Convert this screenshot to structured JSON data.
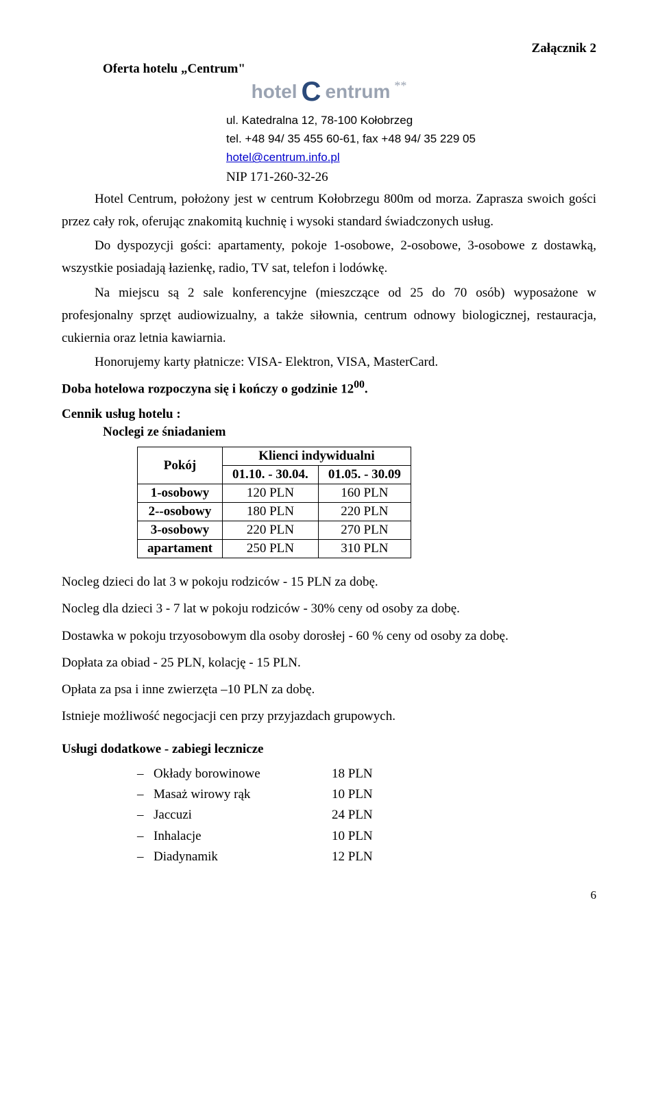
{
  "attachment": "Załącznik 2",
  "offer_title": "Oferta hotelu „Centrum\"",
  "logo": {
    "word1": "hotel",
    "word2": "entrum",
    "stars": "**"
  },
  "contact": {
    "address": "ul. Katedralna 12, 78-100 Kołobrzeg",
    "tel": "tel. +48 94/ 35 455 60-61, fax +48 94/ 35 229 05",
    "email": "hotel@centrum.info.pl",
    "nip": "NIP 171-260-32-26"
  },
  "paragraphs": {
    "p1a": "Hotel Centrum, położony jest w centrum Kołobrzegu 800m od morza. Zaprasza swoich gości przez cały rok, oferując znakomitą kuchnię i wysoki standard świadczonych usług.",
    "p2": "Do dyspozycji gości: apartamenty, pokoje 1-osobowe, 2-osobowe, 3-osobowe z dostawką, wszystkie posiadają łazienkę, radio, TV sat, telefon i lodówkę.",
    "p3": "Na miejscu są 2 sale konferencyjne (mieszczące od 25 do 70 osób) wyposażone w profesjonalny sprzęt audiowizualny, a także siłownia, centrum odnowy biologicznej, restauracja, cukiernia oraz letnia kawiarnia.",
    "p4": "Honorujemy karty płatnicze: VISA- Elektron, VISA, MasterCard.",
    "p5_prefix": "Doba hotelowa rozpoczyna się i kończy o godzinie 12",
    "p5_sup": "00",
    "p5_suffix": "."
  },
  "section_heading": "Cennik usług hotelu :",
  "sub_heading": "Noclegi ze śniadaniem",
  "table": {
    "col1": "Pokój",
    "col2": "Klienci indywidualni",
    "period1": "01.10. - 30.04.",
    "period2": "01.05. - 30.09",
    "rows": [
      {
        "label": "1-osobowy",
        "p1": "120 PLN",
        "p2": "160 PLN"
      },
      {
        "label": "2--osobowy",
        "p1": "180 PLN",
        "p2": "220 PLN"
      },
      {
        "label": "3-osobowy",
        "p1": "220 PLN",
        "p2": "270 PLN"
      },
      {
        "label": "apartament",
        "p1": "250 PLN",
        "p2": "310 PLN"
      }
    ]
  },
  "notes": [
    "Nocleg dzieci do lat 3 w pokoju rodziców - 15 PLN za dobę.",
    "Nocleg dla dzieci 3 - 7 lat w pokoju rodziców - 30% ceny od osoby za dobę.",
    "Dostawka w pokoju trzyosobowym dla osoby dorosłej - 60 % ceny od osoby za dobę.",
    "Dopłata za obiad - 25 PLN, kolację - 15 PLN.",
    "Opłata za psa i inne zwierzęta –10 PLN za dobę.",
    "Istnieje możliwość negocjacji cen przy przyjazdach grupowych."
  ],
  "extras_heading": "Usługi dodatkowe - zabiegi lecznicze",
  "extras": [
    {
      "label": "Okłady borowinowe",
      "price": "18 PLN"
    },
    {
      "label": "Masaż wirowy rąk",
      "price": "10 PLN"
    },
    {
      "label": "Jaccuzi",
      "price": "24 PLN"
    },
    {
      "label": "Inhalacje",
      "price": "10 PLN"
    },
    {
      "label": "Diadynamik",
      "price": "12 PLN"
    }
  ],
  "page_num": "6"
}
